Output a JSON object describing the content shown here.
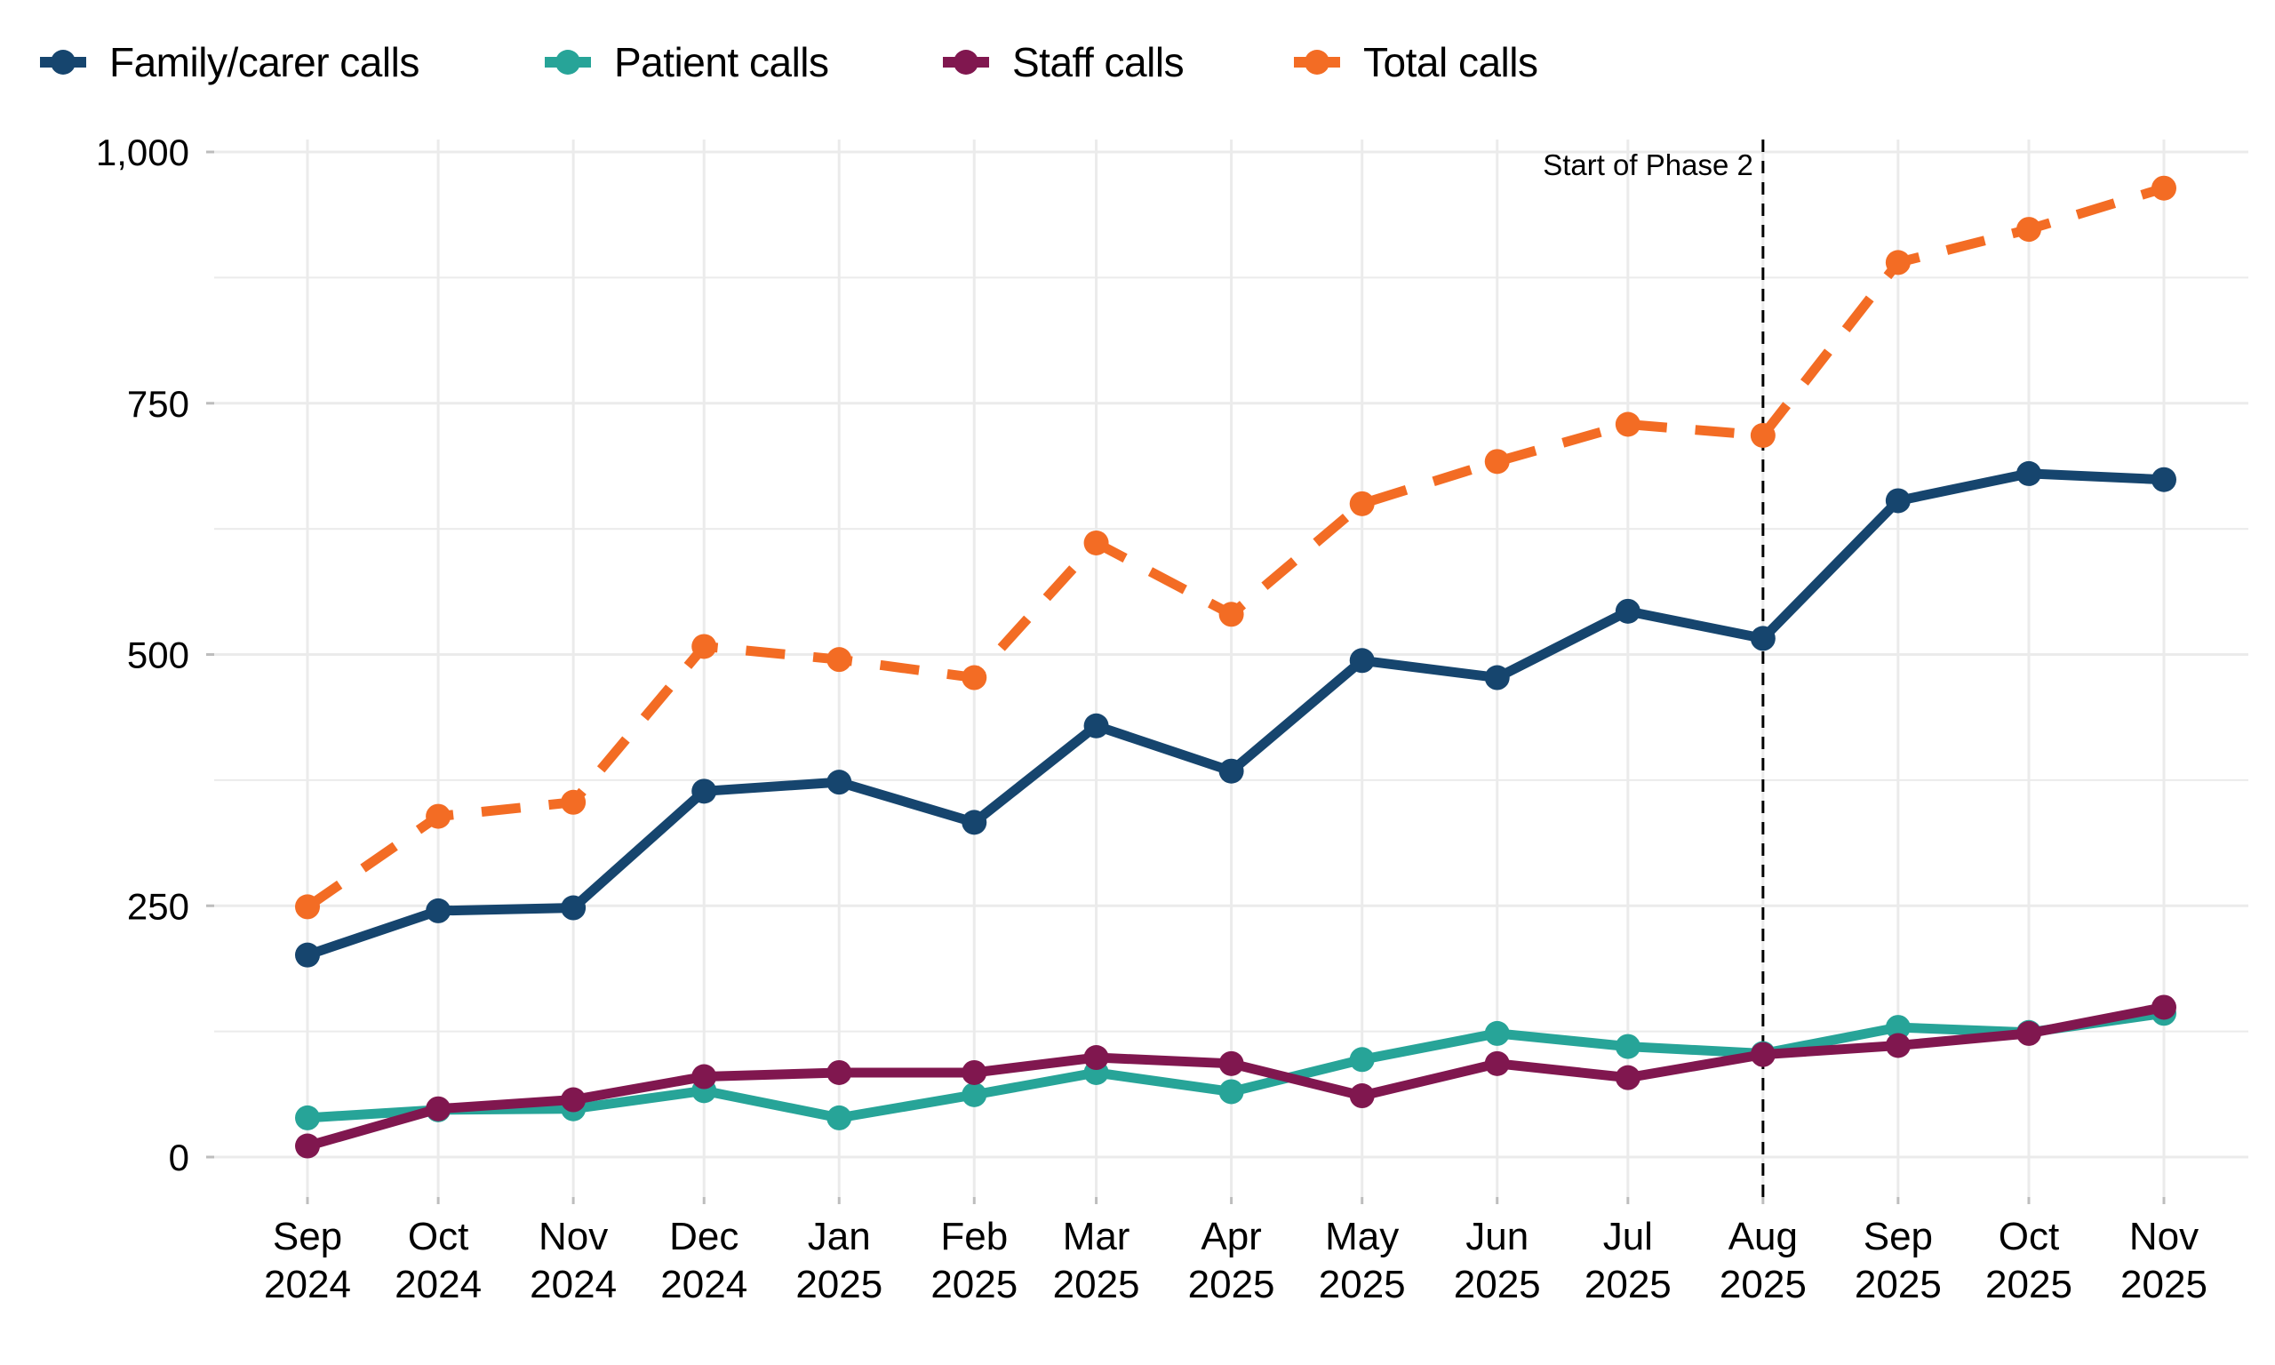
{
  "chart_data": {
    "type": "line",
    "title": "",
    "xlabel": "",
    "ylabel": "",
    "ylim": [
      0,
      1000
    ],
    "y_ticks": [
      {
        "value": 0,
        "label": "0"
      },
      {
        "value": 250,
        "label": "250"
      },
      {
        "value": 500,
        "label": "500"
      },
      {
        "value": 750,
        "label": "750"
      },
      {
        "value": 1000,
        "label": "1,000"
      }
    ],
    "y_minor_ticks": [
      125,
      375,
      625,
      875
    ],
    "grid": true,
    "legend_position": "top-left",
    "x": [
      "2024-09-01",
      "2024-10-01",
      "2024-11-01",
      "2024-12-01",
      "2025-01-01",
      "2025-02-01",
      "2025-03-01",
      "2025-04-01",
      "2025-05-01",
      "2025-06-01",
      "2025-07-01",
      "2025-08-01",
      "2025-09-01",
      "2025-10-01",
      "2025-11-01"
    ],
    "x_tick_labels": [
      {
        "month": "Sep",
        "year": "2024"
      },
      {
        "month": "Oct",
        "year": "2024"
      },
      {
        "month": "Nov",
        "year": "2024"
      },
      {
        "month": "Dec",
        "year": "2024"
      },
      {
        "month": "Jan",
        "year": "2025"
      },
      {
        "month": "Feb",
        "year": "2025"
      },
      {
        "month": "Mar",
        "year": "2025"
      },
      {
        "month": "Apr",
        "year": "2025"
      },
      {
        "month": "May",
        "year": "2025"
      },
      {
        "month": "Jun",
        "year": "2025"
      },
      {
        "month": "Jul",
        "year": "2025"
      },
      {
        "month": "Aug",
        "year": "2025"
      },
      {
        "month": "Sep",
        "year": "2025"
      },
      {
        "month": "Oct",
        "year": "2025"
      },
      {
        "month": "Nov",
        "year": "2025"
      }
    ],
    "series": [
      {
        "key": "family",
        "name": "Family/carer calls",
        "color": "#16456E",
        "dashed": false,
        "values": [
          201,
          245,
          248,
          364,
          373,
          333,
          429,
          384,
          494,
          477,
          543,
          516,
          653,
          680,
          674
        ]
      },
      {
        "key": "patient",
        "name": "Patient calls",
        "color": "#27A498",
        "dashed": false,
        "values": [
          39,
          47,
          48,
          66,
          39,
          62,
          84,
          65,
          97,
          123,
          110,
          103,
          129,
          124,
          143
        ]
      },
      {
        "key": "staff",
        "name": "Staff calls",
        "color": "#80174F",
        "dashed": false,
        "values": [
          11,
          48,
          57,
          80,
          84,
          84,
          99,
          93,
          61,
          93,
          79,
          102,
          111,
          123,
          149
        ]
      },
      {
        "key": "total",
        "name": "Total calls",
        "color": "#F36C24",
        "dashed": true,
        "values": [
          249,
          339,
          353,
          508,
          495,
          477,
          611,
          540,
          650,
          692,
          729,
          718,
          890,
          923,
          964
        ]
      }
    ],
    "annotations": [
      {
        "type": "vline",
        "x": "2025-08-01",
        "label": "Start of Phase 2",
        "style": "dashed",
        "color": "#000000"
      }
    ]
  }
}
